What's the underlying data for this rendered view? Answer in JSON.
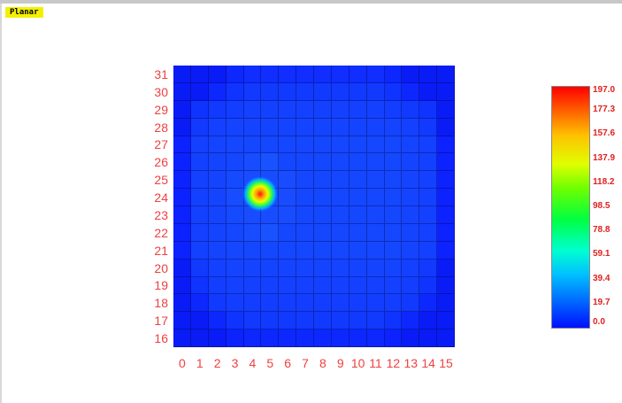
{
  "window": {
    "tab_label": "Planar"
  },
  "chart_data": {
    "type": "heatmap",
    "title": "",
    "xlabel": "",
    "ylabel": "",
    "x_ticks": [
      "0",
      "1",
      "2",
      "3",
      "4",
      "5",
      "6",
      "7",
      "8",
      "9",
      "10",
      "11",
      "12",
      "13",
      "14",
      "15"
    ],
    "y_ticks": [
      "16",
      "17",
      "18",
      "19",
      "20",
      "21",
      "22",
      "23",
      "24",
      "25",
      "26",
      "27",
      "28",
      "29",
      "30",
      "31"
    ],
    "colorbar_ticks": [
      "197.0",
      "177.3",
      "157.6",
      "137.9",
      "118.2",
      "98.5",
      "78.8",
      "59.1",
      "39.4",
      "19.7",
      "0.0"
    ],
    "value_range": [
      0.0,
      197.0
    ],
    "hotspot": {
      "x": 4.5,
      "y": 24,
      "peak": 197.0
    },
    "colors": {
      "background_cell": "#0a1cf5",
      "active_cell": "#1a4cff",
      "label_color": "#f04040"
    },
    "rows": [
      [
        0,
        0,
        0,
        4,
        6,
        6,
        6,
        6,
        6,
        6,
        6,
        6,
        4,
        0,
        0,
        0
      ],
      [
        0,
        0,
        4,
        8,
        10,
        10,
        10,
        10,
        10,
        10,
        10,
        10,
        8,
        4,
        0,
        0
      ],
      [
        0,
        8,
        10,
        11,
        12,
        12,
        12,
        12,
        12,
        12,
        12,
        12,
        11,
        10,
        8,
        0
      ],
      [
        0,
        10,
        12,
        13,
        13,
        13,
        13,
        13,
        13,
        13,
        13,
        13,
        13,
        12,
        10,
        0
      ],
      [
        2,
        12,
        13,
        14,
        14,
        14,
        14,
        14,
        14,
        14,
        14,
        14,
        14,
        13,
        12,
        2
      ],
      [
        2,
        12,
        13,
        14,
        16,
        18,
        14,
        14,
        14,
        14,
        14,
        14,
        14,
        13,
        12,
        2
      ],
      [
        2,
        12,
        13,
        15,
        60,
        70,
        20,
        14,
        14,
        14,
        14,
        14,
        14,
        13,
        12,
        2
      ],
      [
        2,
        12,
        13,
        16,
        180,
        197,
        40,
        14,
        14,
        14,
        14,
        14,
        14,
        13,
        12,
        2
      ],
      [
        2,
        12,
        13,
        15,
        70,
        90,
        22,
        14,
        14,
        14,
        14,
        14,
        14,
        13,
        12,
        2
      ],
      [
        2,
        12,
        13,
        14,
        16,
        18,
        14,
        14,
        14,
        14,
        14,
        14,
        14,
        13,
        12,
        2
      ],
      [
        2,
        12,
        13,
        14,
        14,
        14,
        14,
        14,
        14,
        14,
        14,
        14,
        14,
        13,
        12,
        2
      ],
      [
        0,
        10,
        12,
        13,
        13,
        13,
        13,
        13,
        13,
        13,
        13,
        13,
        13,
        12,
        10,
        0
      ],
      [
        0,
        8,
        11,
        12,
        12,
        12,
        12,
        12,
        12,
        12,
        12,
        12,
        12,
        11,
        8,
        0
      ],
      [
        0,
        4,
        10,
        11,
        11,
        11,
        11,
        11,
        11,
        11,
        11,
        11,
        11,
        10,
        4,
        0
      ],
      [
        0,
        0,
        4,
        8,
        10,
        10,
        10,
        10,
        10,
        10,
        10,
        10,
        8,
        4,
        0,
        0
      ],
      [
        0,
        0,
        0,
        2,
        4,
        4,
        4,
        4,
        4,
        4,
        4,
        4,
        2,
        0,
        0,
        0
      ]
    ]
  }
}
